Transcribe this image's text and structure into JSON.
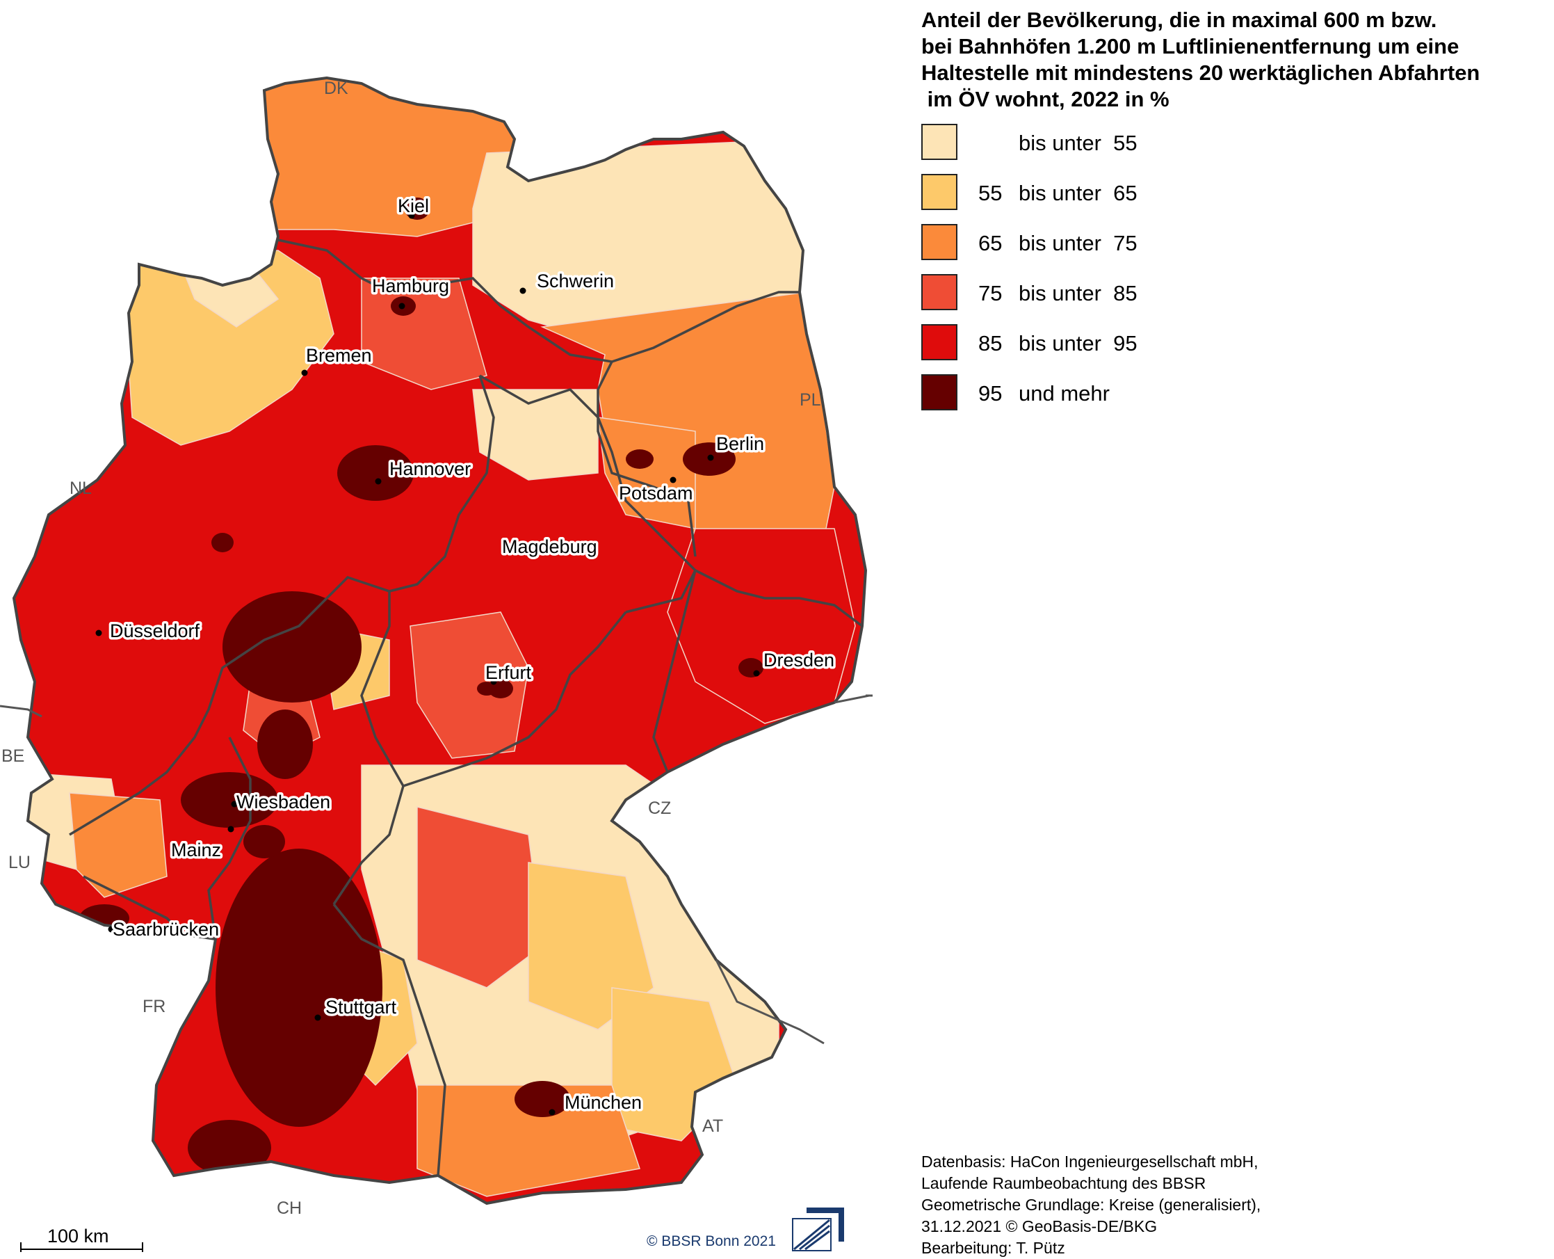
{
  "legend": {
    "title_lines": [
      "Anteil der Bevölkerung, die in maximal 600 m  bzw.",
      "bei Bahnhöfen 1.200 m Luftlinienentfernung um eine",
      "Haltestelle mit mindestens 20 werktäglichen Abfahrten",
      " im ÖV wohnt, 2022 in %"
    ],
    "classes": [
      {
        "low": "",
        "text": "bis unter  55",
        "color": "#fde4b6"
      },
      {
        "low": "55",
        "text": "bis unter  65",
        "color": "#fdc96a"
      },
      {
        "low": "65",
        "text": "bis unter  75",
        "color": "#fb8a3a"
      },
      {
        "low": "75",
        "text": "bis unter  85",
        "color": "#ef4d35"
      },
      {
        "low": "85",
        "text": "bis unter  95",
        "color": "#df0c0c"
      },
      {
        "low": "95",
        "text": "und mehr",
        "color": "#650000"
      }
    ]
  },
  "cities": [
    {
      "name": "Kiel"
    },
    {
      "name": "Hamburg"
    },
    {
      "name": "Schwerin"
    },
    {
      "name": "Bremen"
    },
    {
      "name": "Hannover"
    },
    {
      "name": "Berlin"
    },
    {
      "name": "Potsdam"
    },
    {
      "name": "Magdeburg"
    },
    {
      "name": "Düsseldorf"
    },
    {
      "name": "Dresden"
    },
    {
      "name": "Erfurt"
    },
    {
      "name": "Wiesbaden"
    },
    {
      "name": "Mainz"
    },
    {
      "name": "Saarbrücken"
    },
    {
      "name": "Stuttgart"
    },
    {
      "name": "München"
    }
  ],
  "countries": [
    "DK",
    "PL",
    "NL",
    "BE",
    "LU",
    "FR",
    "CZ",
    "AT",
    "CH"
  ],
  "scalebar": {
    "label": "100 km"
  },
  "copyright": "©  BBSR Bonn 2021",
  "source_lines": [
    "Datenbasis: HaCon Ingenieurgesellschaft mbH,",
    "Laufende Raumbeobachtung des BBSR",
    "Geometrische Grundlage: Kreise (generalisiert),",
    "31.12.2021 © GeoBasis-DE/BKG",
    "Bearbeitung: T. Pütz"
  ]
}
